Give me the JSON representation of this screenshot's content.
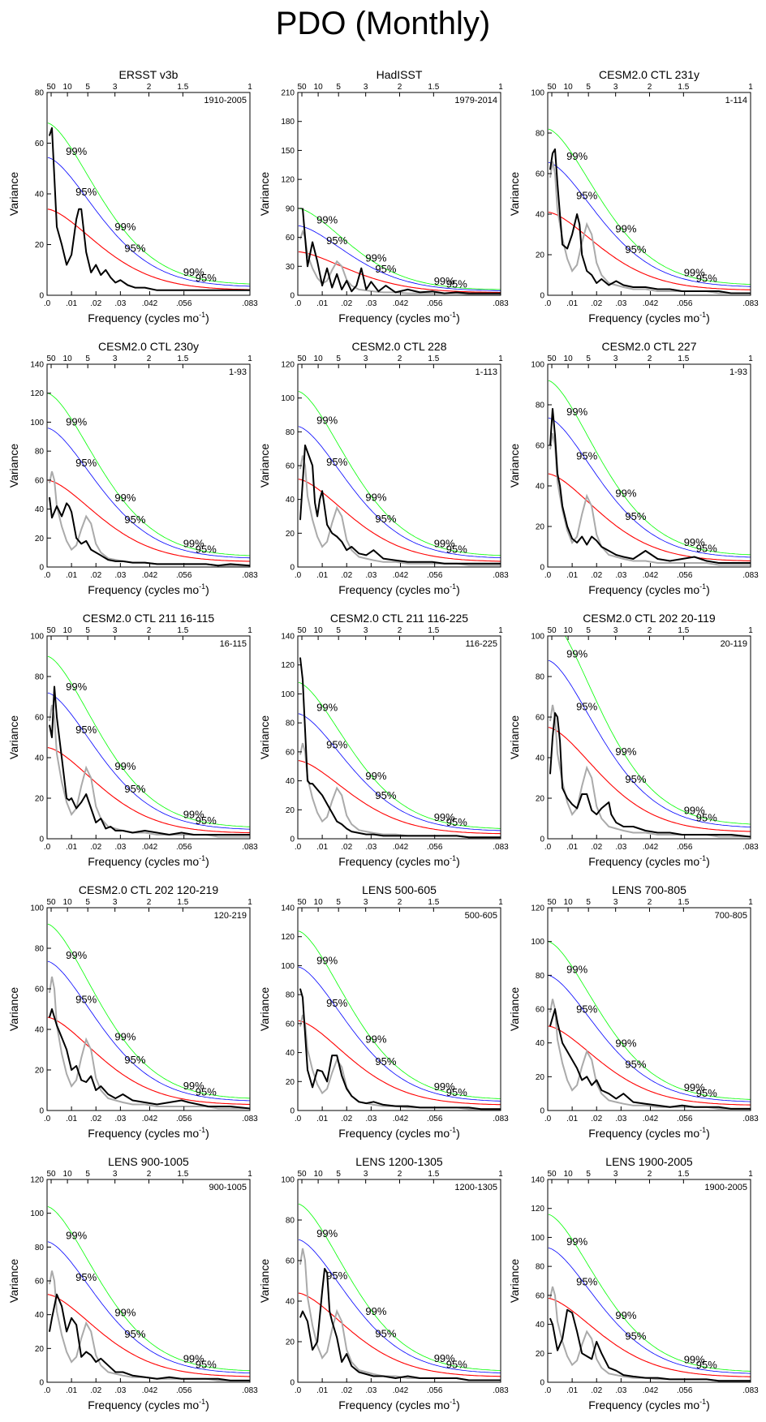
{
  "figure": {
    "title": "PDO (Monthly)",
    "period_ticks": [
      "50",
      "10",
      "5",
      "3",
      "2",
      "1.5",
      "1"
    ],
    "freq_ticks": [
      ".0",
      ".01",
      ".02",
      ".03",
      ".042",
      ".056",
      ".083"
    ],
    "xlabel_main": "Frequency (cycles mo",
    "xlabel_sup": "-1",
    "xlabel_close": ")",
    "ylabel": "Variance",
    "pct99": "99%",
    "pct95": "95%",
    "colors": {
      "spectrum": "#000000",
      "reference": "#aaaaaa",
      "rednoise": "#ff0000",
      "ci95": "#0000ff",
      "ci99": "#00ff00"
    }
  },
  "chart_data": [
    {
      "type": "line",
      "title": "ERSST v3b",
      "period": "1910-2005",
      "xlabel": "Frequency (cycles mo-1)",
      "ylabel": "Variance",
      "xlim": [
        0,
        0.083
      ],
      "ylim": [
        0,
        80
      ],
      "yticks": [
        0,
        20,
        40,
        60,
        80
      ],
      "a0": 34,
      "g": 33,
      "ref": false,
      "x": [
        0.001,
        0.002,
        0.004,
        0.006,
        0.008,
        0.01,
        0.012,
        0.013,
        0.014,
        0.016,
        0.018,
        0.02,
        0.022,
        0.024,
        0.026,
        0.028,
        0.03,
        0.033,
        0.036,
        0.04,
        0.045,
        0.05,
        0.055,
        0.06,
        0.065,
        0.07,
        0.075,
        0.083
      ],
      "y": [
        63,
        66,
        27,
        20,
        12,
        16,
        30,
        34,
        34,
        17,
        9,
        12,
        8,
        10,
        7,
        5,
        6,
        4,
        3,
        3,
        2,
        2,
        2,
        2,
        2,
        2,
        2,
        2
      ]
    },
    {
      "type": "line",
      "title": "HadISST",
      "period": "1979-2014",
      "xlabel": "Frequency (cycles mo-1)",
      "ylabel": "Variance",
      "xlim": [
        0,
        0.083
      ],
      "ylim": [
        0,
        210
      ],
      "yticks": [
        0,
        30,
        60,
        90,
        120,
        150,
        180,
        210
      ],
      "a0": 45,
      "g": 30,
      "ref": true,
      "x": [
        0.002,
        0.004,
        0.006,
        0.008,
        0.01,
        0.012,
        0.014,
        0.016,
        0.018,
        0.02,
        0.022,
        0.024,
        0.026,
        0.028,
        0.03,
        0.033,
        0.036,
        0.04,
        0.045,
        0.05,
        0.055,
        0.06,
        0.065,
        0.07,
        0.075,
        0.083
      ],
      "y": [
        90,
        30,
        55,
        35,
        10,
        28,
        8,
        22,
        6,
        15,
        4,
        10,
        28,
        6,
        14,
        4,
        10,
        3,
        6,
        3,
        4,
        2,
        3,
        2,
        2,
        2
      ]
    },
    {
      "type": "line",
      "title": "CESM2.0 CTL 231y",
      "period": "1-114",
      "xlabel": "Frequency (cycles mo-1)",
      "ylabel": "Variance",
      "xlim": [
        0,
        0.083
      ],
      "ylim": [
        0,
        100
      ],
      "yticks": [
        0,
        20,
        40,
        60,
        80,
        100
      ],
      "a0": 41,
      "g": 30,
      "ref": true,
      "x": [
        0.001,
        0.002,
        0.003,
        0.004,
        0.006,
        0.008,
        0.01,
        0.012,
        0.013,
        0.014,
        0.016,
        0.018,
        0.02,
        0.022,
        0.025,
        0.028,
        0.031,
        0.035,
        0.04,
        0.045,
        0.05,
        0.055,
        0.06,
        0.065,
        0.07,
        0.075,
        0.083
      ],
      "y": [
        62,
        70,
        72,
        55,
        25,
        23,
        30,
        40,
        35,
        20,
        12,
        10,
        6,
        8,
        5,
        7,
        5,
        4,
        4,
        3,
        3,
        2,
        2,
        2,
        2,
        1,
        1
      ]
    },
    {
      "type": "line",
      "title": "CESM2.0 CTL 230y",
      "period": "1-93",
      "xlabel": "Frequency (cycles mo-1)",
      "ylabel": "Variance",
      "xlim": [
        0,
        0.083
      ],
      "ylim": [
        0,
        140
      ],
      "yticks": [
        0,
        20,
        40,
        60,
        80,
        100,
        120,
        140
      ],
      "a0": 60,
      "g": 33,
      "ref": true,
      "x": [
        0.001,
        0.002,
        0.004,
        0.006,
        0.008,
        0.009,
        0.01,
        0.012,
        0.014,
        0.016,
        0.018,
        0.02,
        0.022,
        0.025,
        0.028,
        0.031,
        0.035,
        0.04,
        0.045,
        0.05,
        0.055,
        0.06,
        0.065,
        0.07,
        0.075,
        0.083
      ],
      "y": [
        48,
        34,
        42,
        35,
        44,
        42,
        38,
        20,
        16,
        18,
        12,
        10,
        8,
        5,
        4,
        4,
        3,
        3,
        2,
        2,
        2,
        2,
        2,
        1,
        2,
        1
      ]
    },
    {
      "type": "line",
      "title": "CESM2.0 CTL 228",
      "period": "1-113",
      "xlabel": "Frequency (cycles mo-1)",
      "ylabel": "Variance",
      "xlim": [
        0,
        0.083
      ],
      "ylim": [
        0,
        120
      ],
      "yticks": [
        0,
        20,
        40,
        60,
        80,
        100,
        120
      ],
      "a0": 52,
      "g": 32,
      "ref": true,
      "x": [
        0.001,
        0.002,
        0.003,
        0.004,
        0.006,
        0.007,
        0.008,
        0.009,
        0.01,
        0.012,
        0.014,
        0.016,
        0.018,
        0.02,
        0.022,
        0.025,
        0.028,
        0.031,
        0.035,
        0.04,
        0.045,
        0.05,
        0.055,
        0.06,
        0.065,
        0.07,
        0.075,
        0.083
      ],
      "y": [
        28,
        50,
        72,
        68,
        60,
        38,
        30,
        40,
        45,
        25,
        20,
        18,
        15,
        10,
        12,
        8,
        7,
        10,
        5,
        4,
        3,
        3,
        3,
        2,
        2,
        2,
        2,
        2
      ]
    },
    {
      "type": "line",
      "title": "CESM2.0 CTL 227",
      "period": "1-93",
      "xlabel": "Frequency (cycles mo-1)",
      "ylabel": "Variance",
      "xlim": [
        0,
        0.083
      ],
      "ylim": [
        0,
        100
      ],
      "yticks": [
        0,
        20,
        40,
        60,
        80,
        100
      ],
      "a0": 46,
      "g": 33,
      "ref": true,
      "x": [
        0.001,
        0.002,
        0.003,
        0.004,
        0.005,
        0.006,
        0.008,
        0.01,
        0.012,
        0.014,
        0.016,
        0.018,
        0.02,
        0.022,
        0.025,
        0.028,
        0.031,
        0.035,
        0.04,
        0.045,
        0.05,
        0.055,
        0.06,
        0.065,
        0.07,
        0.075,
        0.083
      ],
      "y": [
        60,
        78,
        65,
        46,
        40,
        30,
        20,
        14,
        12,
        15,
        11,
        15,
        13,
        10,
        8,
        6,
        5,
        4,
        8,
        4,
        3,
        4,
        5,
        3,
        2,
        2,
        2
      ]
    },
    {
      "type": "line",
      "title": "CESM2.0 CTL 211 16-115",
      "period": "16-115",
      "xlabel": "Frequency (cycles mo-1)",
      "ylabel": "Variance",
      "xlim": [
        0,
        0.083
      ],
      "ylim": [
        0,
        100
      ],
      "yticks": [
        0,
        20,
        40,
        60,
        80,
        100
      ],
      "a0": 45,
      "g": 33,
      "ref": true,
      "x": [
        0.001,
        0.002,
        0.003,
        0.004,
        0.006,
        0.008,
        0.009,
        0.01,
        0.012,
        0.014,
        0.016,
        0.018,
        0.02,
        0.022,
        0.024,
        0.026,
        0.028,
        0.031,
        0.035,
        0.04,
        0.045,
        0.05,
        0.055,
        0.06,
        0.065,
        0.07,
        0.075,
        0.083
      ],
      "y": [
        56,
        50,
        75,
        60,
        40,
        20,
        19,
        20,
        15,
        18,
        22,
        15,
        8,
        10,
        5,
        6,
        4,
        4,
        3,
        4,
        3,
        2,
        3,
        2,
        2,
        2,
        2,
        2
      ]
    },
    {
      "type": "line",
      "title": "CESM2.0 CTL 211 116-225",
      "period": "116-225",
      "xlabel": "Frequency (cycles mo-1)",
      "ylabel": "Variance",
      "xlim": [
        0,
        0.083
      ],
      "ylim": [
        0,
        140
      ],
      "yticks": [
        0,
        20,
        40,
        60,
        80,
        100,
        120,
        140
      ],
      "a0": 54,
      "g": 33,
      "ref": true,
      "x": [
        0.001,
        0.002,
        0.003,
        0.004,
        0.005,
        0.006,
        0.008,
        0.01,
        0.012,
        0.014,
        0.016,
        0.018,
        0.02,
        0.022,
        0.025,
        0.028,
        0.031,
        0.035,
        0.04,
        0.045,
        0.05,
        0.055,
        0.06,
        0.065,
        0.07,
        0.075,
        0.083
      ],
      "y": [
        125,
        110,
        75,
        40,
        38,
        38,
        34,
        30,
        24,
        18,
        12,
        10,
        7,
        5,
        4,
        3,
        3,
        2,
        2,
        2,
        2,
        2,
        2,
        2,
        1,
        1,
        1
      ]
    },
    {
      "type": "line",
      "title": "CESM2.0 CTL 202 20-119",
      "period": "20-119",
      "xlabel": "Frequency (cycles mo-1)",
      "ylabel": "Variance",
      "xlim": [
        0,
        0.083
      ],
      "ylim": [
        0,
        100
      ],
      "yticks": [
        0,
        20,
        40,
        60,
        80,
        100
      ],
      "a0": 55,
      "g": 32,
      "ref": true,
      "x": [
        0.001,
        0.002,
        0.003,
        0.004,
        0.005,
        0.006,
        0.008,
        0.01,
        0.012,
        0.014,
        0.016,
        0.018,
        0.02,
        0.022,
        0.025,
        0.026,
        0.028,
        0.031,
        0.035,
        0.04,
        0.045,
        0.05,
        0.055,
        0.06,
        0.065,
        0.07,
        0.075,
        0.083
      ],
      "y": [
        32,
        50,
        62,
        60,
        48,
        25,
        20,
        17,
        15,
        22,
        22,
        14,
        12,
        15,
        18,
        12,
        8,
        6,
        6,
        4,
        3,
        3,
        2,
        2,
        2,
        2,
        2,
        1
      ]
    },
    {
      "type": "line",
      "title": "CESM2.0 CTL 202 120-219",
      "period": "120-219",
      "xlabel": "Frequency (cycles mo-1)",
      "ylabel": "Variance",
      "xlim": [
        0,
        0.083
      ],
      "ylim": [
        0,
        100
      ],
      "yticks": [
        0,
        20,
        40,
        60,
        80,
        100
      ],
      "a0": 46,
      "g": 33,
      "ref": true,
      "x": [
        0.001,
        0.002,
        0.004,
        0.006,
        0.008,
        0.01,
        0.012,
        0.014,
        0.016,
        0.018,
        0.02,
        0.022,
        0.025,
        0.028,
        0.031,
        0.035,
        0.04,
        0.045,
        0.05,
        0.055,
        0.058,
        0.062,
        0.066,
        0.07,
        0.075,
        0.083
      ],
      "y": [
        46,
        50,
        42,
        36,
        30,
        20,
        22,
        15,
        14,
        17,
        10,
        12,
        8,
        6,
        8,
        5,
        4,
        3,
        4,
        5,
        4,
        3,
        2,
        2,
        2,
        1
      ]
    },
    {
      "type": "line",
      "title": "LENS 500-605",
      "period": "500-605",
      "xlabel": "Frequency (cycles mo-1)",
      "ylabel": "Variance",
      "xlim": [
        0,
        0.083
      ],
      "ylim": [
        0,
        140
      ],
      "yticks": [
        0,
        20,
        40,
        60,
        80,
        100,
        120,
        140
      ],
      "a0": 62,
      "g": 33,
      "ref": true,
      "x": [
        0.001,
        0.002,
        0.004,
        0.006,
        0.008,
        0.01,
        0.012,
        0.014,
        0.016,
        0.018,
        0.02,
        0.022,
        0.025,
        0.028,
        0.031,
        0.035,
        0.04,
        0.045,
        0.05,
        0.055,
        0.06,
        0.065,
        0.07,
        0.075,
        0.083
      ],
      "y": [
        84,
        78,
        28,
        16,
        28,
        27,
        20,
        38,
        38,
        24,
        15,
        10,
        6,
        5,
        6,
        4,
        3,
        3,
        2,
        2,
        2,
        2,
        2,
        1,
        1
      ]
    },
    {
      "type": "line",
      "title": "LENS 700-805",
      "period": "700-805",
      "xlabel": "Frequency (cycles mo-1)",
      "ylabel": "Variance",
      "xlim": [
        0,
        0.083
      ],
      "ylim": [
        0,
        120
      ],
      "yticks": [
        0,
        20,
        40,
        60,
        80,
        100,
        120
      ],
      "a0": 50,
      "g": 30,
      "ref": true,
      "x": [
        0.001,
        0.002,
        0.003,
        0.004,
        0.006,
        0.008,
        0.01,
        0.012,
        0.014,
        0.016,
        0.018,
        0.02,
        0.022,
        0.025,
        0.028,
        0.031,
        0.035,
        0.04,
        0.045,
        0.05,
        0.055,
        0.06,
        0.065,
        0.07,
        0.075,
        0.083
      ],
      "y": [
        50,
        55,
        60,
        52,
        40,
        35,
        30,
        25,
        18,
        20,
        15,
        18,
        12,
        10,
        7,
        10,
        5,
        4,
        3,
        2,
        3,
        2,
        2,
        2,
        1,
        1
      ]
    },
    {
      "type": "line",
      "title": "LENS 900-1005",
      "period": "900-1005",
      "xlabel": "Frequency (cycles mo-1)",
      "ylabel": "Variance",
      "xlim": [
        0,
        0.083
      ],
      "ylim": [
        0,
        120
      ],
      "yticks": [
        0,
        20,
        40,
        60,
        80,
        100,
        120
      ],
      "a0": 52,
      "g": 33,
      "ref": true,
      "x": [
        0.001,
        0.002,
        0.004,
        0.006,
        0.008,
        0.01,
        0.012,
        0.014,
        0.016,
        0.018,
        0.02,
        0.022,
        0.025,
        0.028,
        0.031,
        0.035,
        0.04,
        0.045,
        0.05,
        0.055,
        0.06,
        0.065,
        0.07,
        0.075,
        0.083
      ],
      "y": [
        30,
        38,
        52,
        45,
        30,
        38,
        34,
        15,
        18,
        16,
        12,
        14,
        10,
        6,
        6,
        4,
        3,
        2,
        3,
        2,
        2,
        2,
        2,
        1,
        1
      ]
    },
    {
      "type": "line",
      "title": "LENS 1200-1305",
      "period": "1200-1305",
      "xlabel": "Frequency (cycles mo-1)",
      "ylabel": "Variance",
      "xlim": [
        0,
        0.083
      ],
      "ylim": [
        0,
        100
      ],
      "yticks": [
        0,
        20,
        40,
        60,
        80,
        100
      ],
      "a0": 44,
      "g": 33,
      "ref": true,
      "x": [
        0.001,
        0.002,
        0.004,
        0.006,
        0.008,
        0.01,
        0.011,
        0.012,
        0.013,
        0.014,
        0.016,
        0.018,
        0.02,
        0.022,
        0.025,
        0.028,
        0.031,
        0.035,
        0.04,
        0.045,
        0.05,
        0.055,
        0.06,
        0.065,
        0.07,
        0.075,
        0.083
      ],
      "y": [
        32,
        35,
        30,
        16,
        20,
        45,
        56,
        54,
        35,
        30,
        22,
        10,
        14,
        8,
        5,
        4,
        3,
        3,
        2,
        3,
        2,
        2,
        2,
        2,
        1,
        1,
        1
      ]
    },
    {
      "type": "line",
      "title": "LENS 1900-2005",
      "period": "1900-2005",
      "xlabel": "Frequency (cycles mo-1)",
      "ylabel": "Variance",
      "xlim": [
        0,
        0.083
      ],
      "ylim": [
        0,
        140
      ],
      "yticks": [
        0,
        20,
        40,
        60,
        80,
        100,
        120,
        140
      ],
      "a0": 58,
      "g": 33,
      "ref": true,
      "x": [
        0.001,
        0.002,
        0.004,
        0.006,
        0.008,
        0.01,
        0.012,
        0.014,
        0.016,
        0.018,
        0.02,
        0.022,
        0.025,
        0.028,
        0.031,
        0.035,
        0.04,
        0.045,
        0.05,
        0.055,
        0.06,
        0.065,
        0.07,
        0.075,
        0.083
      ],
      "y": [
        44,
        40,
        22,
        30,
        50,
        48,
        35,
        20,
        18,
        16,
        28,
        20,
        10,
        8,
        5,
        4,
        3,
        3,
        2,
        2,
        2,
        2,
        1,
        1,
        1
      ]
    }
  ]
}
